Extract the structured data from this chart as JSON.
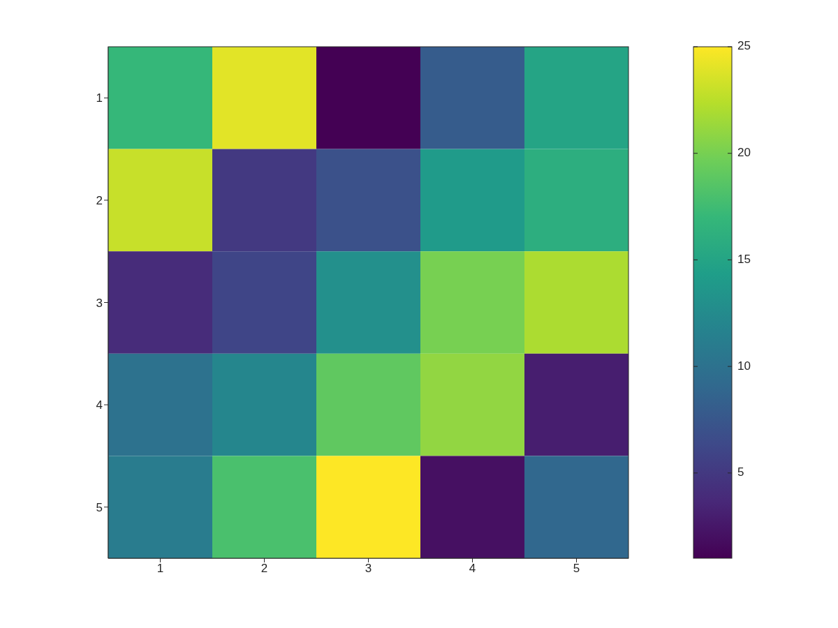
{
  "chart_data": {
    "type": "heatmap",
    "categories": [
      "1",
      "2",
      "3",
      "4",
      "5"
    ],
    "y_categories": [
      "1",
      "2",
      "3",
      "4",
      "5"
    ],
    "cells": [
      [
        17,
        24,
        1,
        8,
        15
      ],
      [
        23,
        5,
        7,
        14,
        16
      ],
      [
        4,
        6,
        13,
        20,
        22
      ],
      [
        10,
        12,
        19,
        21,
        3
      ],
      [
        11,
        18,
        25,
        2,
        9
      ]
    ],
    "clim": [
      1,
      25
    ],
    "cticks": [
      5,
      10,
      15,
      20,
      25
    ]
  }
}
